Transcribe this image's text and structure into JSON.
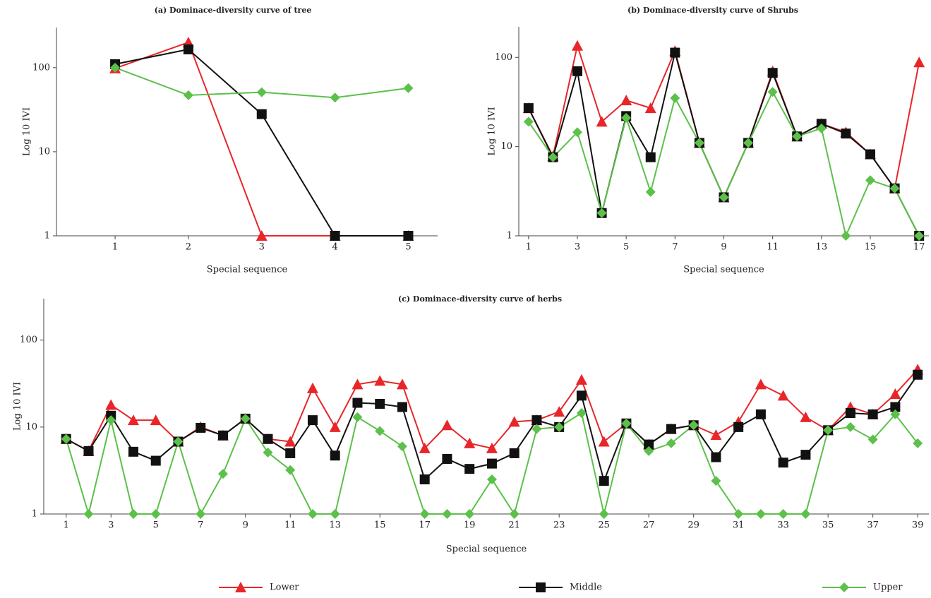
{
  "chart_data": [
    {
      "type": "line",
      "title": "(a)  Dominace-diversity curve of tree",
      "x_label": "Special sequence",
      "y_label": "Log 10 IVI",
      "yscale": "log",
      "x": [
        1,
        2,
        3,
        4,
        5
      ],
      "xlim": [
        0.2,
        5.4
      ],
      "xticks": [
        1,
        2,
        3,
        4,
        5
      ],
      "ylim": [
        1,
        300
      ],
      "yticks": [
        1,
        10,
        100
      ],
      "series": [
        {
          "name": "Lower",
          "color": "#e8262a",
          "marker": "triangle",
          "values": [
            98,
            200,
            1,
            1,
            1
          ]
        },
        {
          "name": "Middle",
          "color": "#111111",
          "marker": "square",
          "values": [
            110,
            165,
            28,
            1,
            1
          ]
        },
        {
          "name": "Upper",
          "color": "#5cc04a",
          "marker": "diamond",
          "values": [
            100,
            47,
            51,
            44,
            57
          ]
        }
      ]
    },
    {
      "type": "line",
      "title": "(b)  Dominace-diversity curve of Shrubs",
      "x_label": "Special sequence",
      "y_label": "Log 10 IVI",
      "yscale": "log",
      "x": [
        1,
        2,
        3,
        4,
        5,
        6,
        7,
        8,
        9,
        10,
        11,
        12,
        13,
        14,
        15,
        16,
        17
      ],
      "xlim": [
        0.6,
        17.4
      ],
      "xticks": [
        1,
        3,
        5,
        7,
        9,
        11,
        13,
        15,
        17
      ],
      "ylim": [
        1,
        220
      ],
      "yticks": [
        1,
        10,
        100
      ],
      "series": [
        {
          "name": "Lower",
          "color": "#e8262a",
          "marker": "triangle",
          "values": [
            27,
            7.8,
            135,
            19,
            33,
            27,
            118,
            11,
            2.7,
            11,
            70,
            13,
            18,
            14.5,
            8.2,
            3.4,
            88
          ]
        },
        {
          "name": "Middle",
          "color": "#111111",
          "marker": "square",
          "values": [
            27,
            7.6,
            70,
            1.8,
            22,
            7.6,
            113,
            11,
            2.7,
            11,
            67,
            13,
            18,
            14,
            8.2,
            3.4,
            1
          ]
        },
        {
          "name": "Upper",
          "color": "#5cc04a",
          "marker": "diamond",
          "values": [
            19,
            7.6,
            14.5,
            1.8,
            21,
            3.1,
            35,
            11,
            2.7,
            11,
            41,
            13,
            16,
            1,
            4.2,
            3.4,
            1
          ]
        }
      ]
    },
    {
      "type": "line",
      "title": "(c)  Dominace-diversity curve of herbs",
      "x_label": "Special sequence",
      "y_label": "Log 10 IVI",
      "yscale": "log",
      "legend": "bottom",
      "x": [
        1,
        2,
        3,
        4,
        5,
        6,
        7,
        8,
        9,
        10,
        11,
        12,
        13,
        14,
        15,
        16,
        17,
        18,
        19,
        20,
        21,
        22,
        23,
        24,
        25,
        26,
        27,
        28,
        29,
        30,
        31,
        32,
        33,
        34,
        35,
        36,
        37,
        38,
        39
      ],
      "xlim": [
        0,
        39.5
      ],
      "xticks": [
        1,
        3,
        5,
        7,
        9,
        11,
        13,
        15,
        17,
        19,
        21,
        23,
        25,
        27,
        29,
        31,
        33,
        35,
        37,
        39
      ],
      "ylim": [
        1,
        300
      ],
      "yticks": [
        1,
        10,
        100
      ],
      "series": [
        {
          "name": "Lower",
          "color": "#e8262a",
          "marker": "triangle",
          "values": [
            7.3,
            5.3,
            18,
            12,
            12,
            6.8,
            10,
            8,
            12.5,
            7.3,
            6.8,
            28,
            10,
            31,
            34,
            31,
            5.7,
            10.5,
            6.5,
            5.7,
            11.5,
            12,
            15,
            35,
            6.8,
            11,
            6.3,
            9.5,
            10.5,
            8.1,
            11.5,
            31,
            23,
            13,
            9.2,
            17,
            14,
            24,
            46
          ]
        },
        {
          "name": "Middle",
          "color": "#111111",
          "marker": "square",
          "values": [
            7.3,
            5.3,
            13.5,
            5.2,
            4.1,
            6.8,
            9.8,
            8,
            12.5,
            7.3,
            5,
            12,
            4.7,
            19,
            18.5,
            17,
            2.5,
            4.3,
            3.3,
            3.8,
            5,
            12,
            10,
            23,
            2.4,
            11,
            6.3,
            9.5,
            10.5,
            4.5,
            10,
            14,
            3.9,
            4.8,
            9.2,
            14.5,
            14,
            17,
            40
          ]
        },
        {
          "name": "Upper",
          "color": "#5cc04a",
          "marker": "diamond",
          "values": [
            7.3,
            1,
            12,
            1,
            1,
            6.8,
            1,
            2.9,
            12.5,
            5.1,
            3.2,
            1,
            1,
            13,
            9,
            6,
            1,
            1,
            1,
            2.5,
            1,
            9.5,
            10,
            14.5,
            1,
            11,
            5.3,
            6.5,
            10.5,
            2.4,
            1,
            1,
            1,
            1,
            9.2,
            10,
            7.2,
            14,
            6.5
          ]
        }
      ]
    }
  ]
}
